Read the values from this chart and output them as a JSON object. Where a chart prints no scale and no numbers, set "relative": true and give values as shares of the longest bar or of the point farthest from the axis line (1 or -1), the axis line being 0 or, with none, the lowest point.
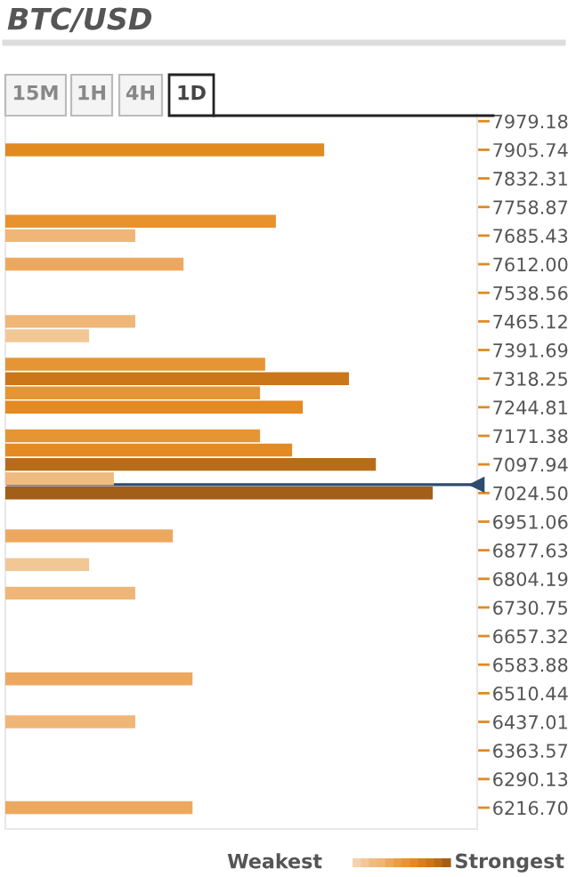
{
  "chart_data": {
    "type": "bar",
    "orientation": "horizontal",
    "relative": true,
    "title": "BTC/USD",
    "x": [
      7905.74,
      7722.15,
      7685.43,
      7612.0,
      7465.12,
      7428.4,
      7354.97,
      7318.25,
      7281.53,
      7244.81,
      7171.38,
      7134.66,
      7097.94,
      7061.22,
      7024.5,
      6914.34,
      6840.91,
      6767.47,
      6547.16,
      6437.01,
      6216.7
    ],
    "values": [
      0.746,
      0.633,
      0.304,
      0.417,
      0.304,
      0.196,
      0.608,
      0.804,
      0.596,
      0.696,
      0.596,
      0.671,
      0.867,
      0.254,
      1,
      0.392,
      0.196,
      0.304,
      0.438,
      0.304,
      0.438
    ],
    "colors": [
      "#e08a20",
      "#e8922d",
      "#efb677",
      "#eda85f",
      "#efb677",
      "#f2c796",
      "#e69535",
      "#cc761a",
      "#e69535",
      "#e48a22",
      "#e69535",
      "#e48a22",
      "#b86c1a",
      "#f0bb80",
      "#a35e17",
      "#eda85f",
      "#f2c796",
      "#efb677",
      "#eda85f",
      "#efb677",
      "#eda85f"
    ],
    "ylim": [
      6162,
      7998
    ],
    "yticks": [
      7979.18,
      7905.74,
      7832.31,
      7758.87,
      7685.43,
      {
        "value": 7612,
        "label": "7612.00"
      },
      7538.56,
      7465.12,
      7391.69,
      7318.25,
      7244.81,
      7171.38,
      7097.94,
      {
        "value": 7024.5,
        "label": "7024.50"
      },
      6951.06,
      6877.63,
      6804.19,
      6730.75,
      6657.32,
      6583.88,
      6510.44,
      6437.01,
      6363.57,
      6290.13,
      {
        "value": 6216.7,
        "label": "6216.70"
      }
    ],
    "ref_lines": [
      {
        "axis": "y",
        "value": 7046,
        "color": "#2f4b6e"
      }
    ],
    "annotations": [
      "15M",
      "1H",
      "4H",
      "1D",
      "Weakest",
      "Strongest"
    ],
    "grid": false
  }
}
